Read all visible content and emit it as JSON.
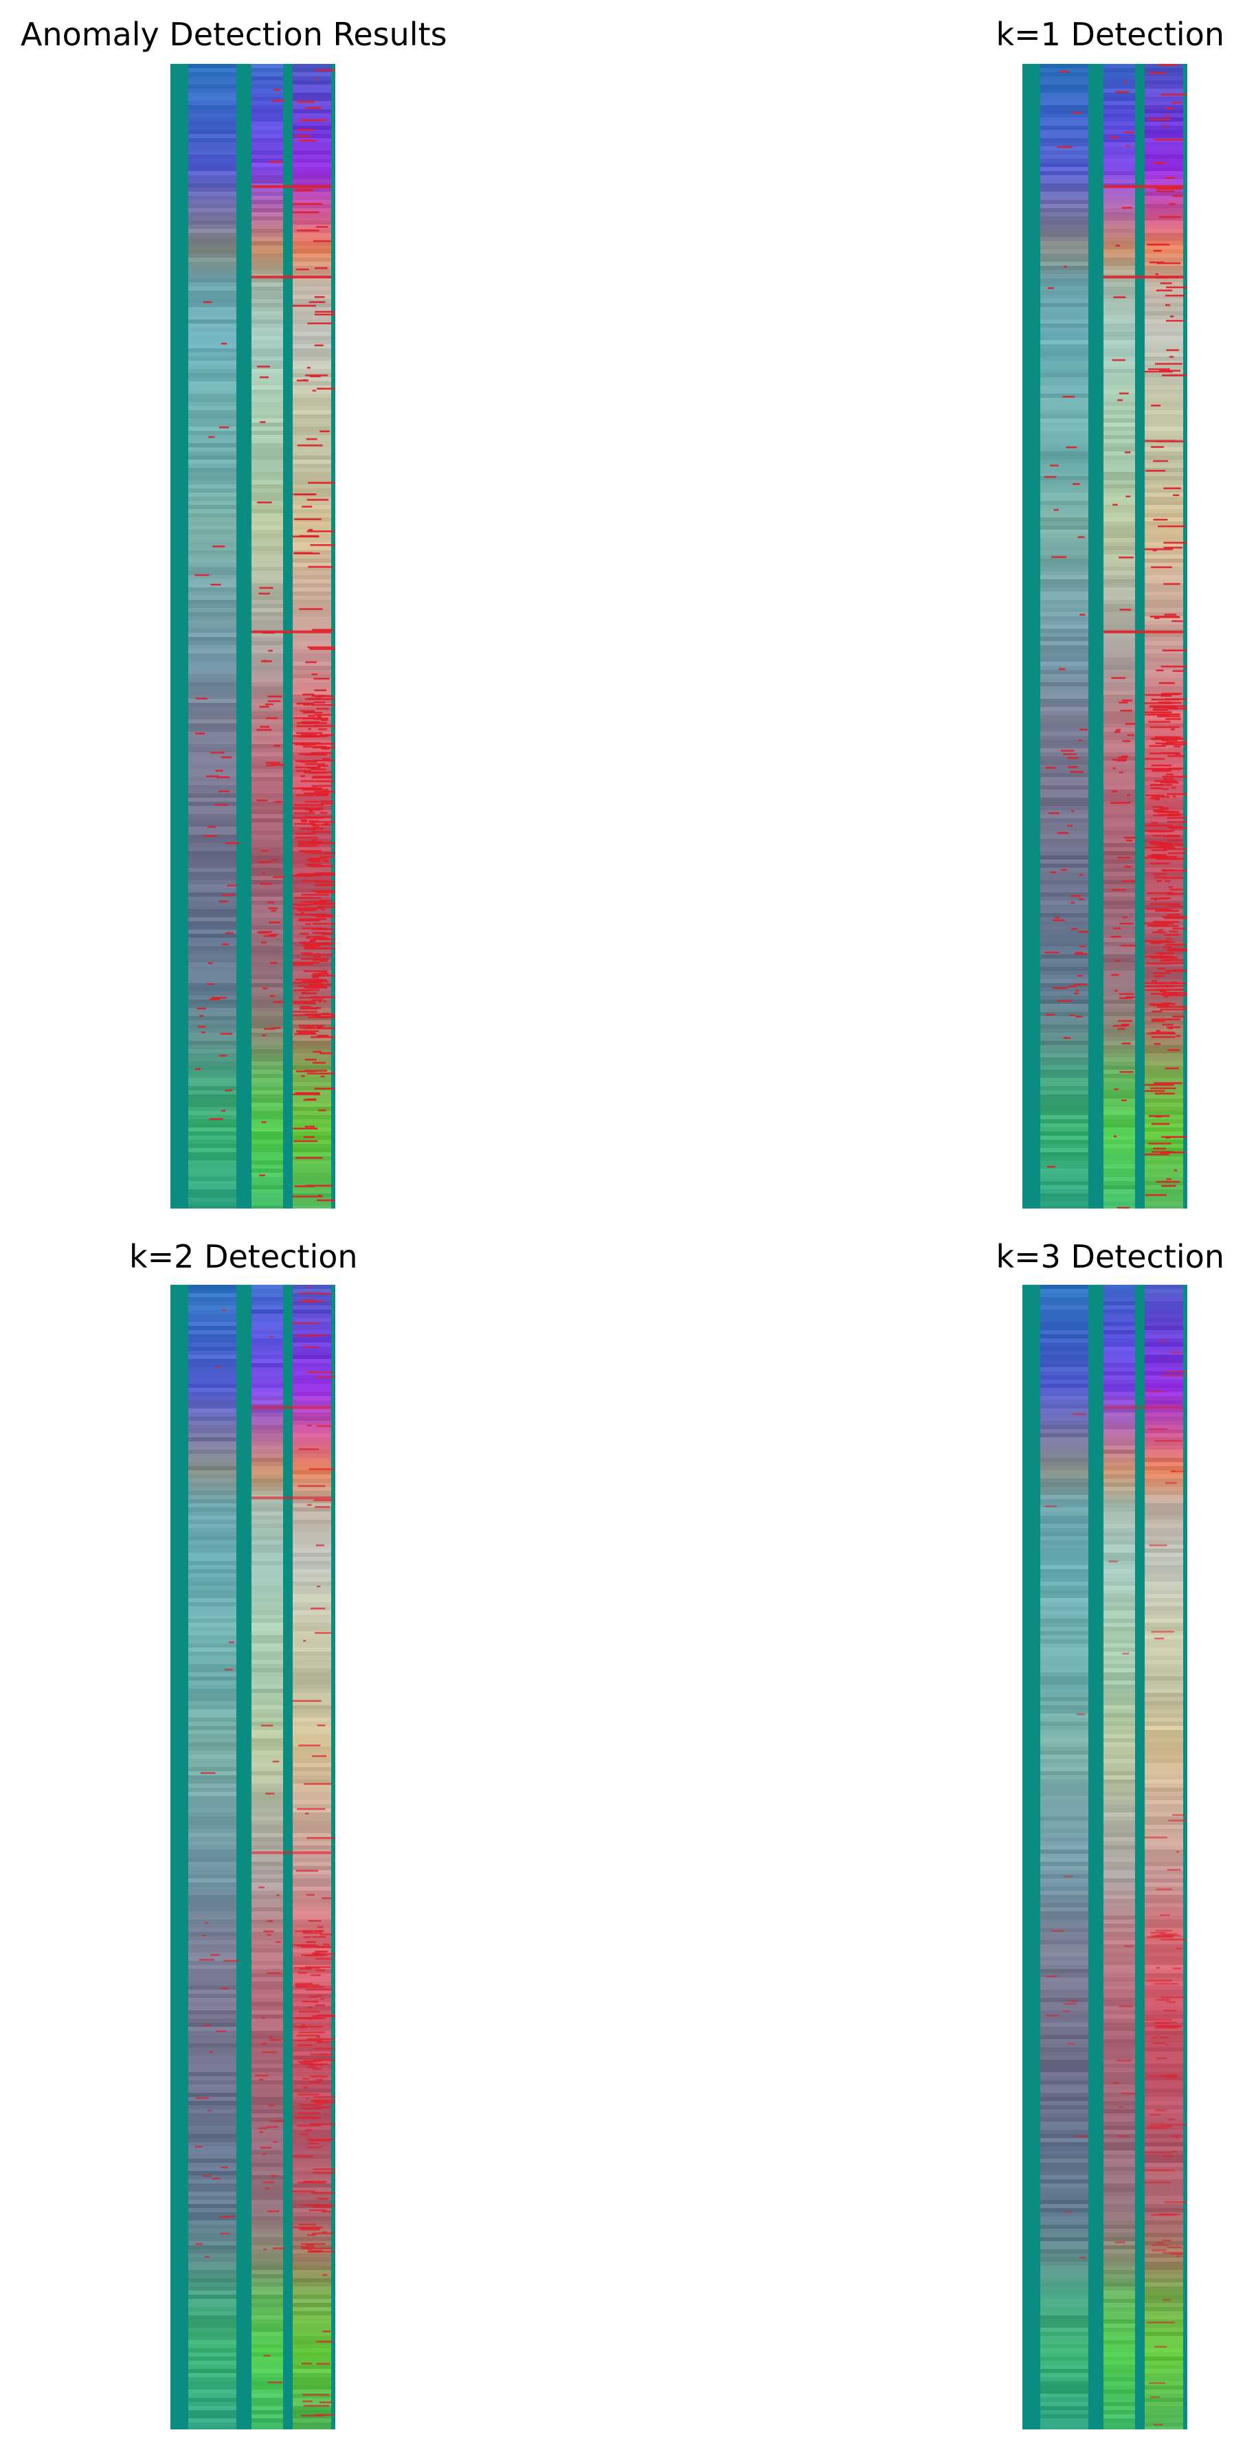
{
  "figure": {
    "panels": [
      {
        "id": "p0",
        "title": "Anomaly Detection Results",
        "marker_intensity": 1.0
      },
      {
        "id": "p1",
        "title": "k=1 Detection",
        "marker_intensity": 1.0
      },
      {
        "id": "p2",
        "title": "k=2 Detection",
        "marker_intensity": 0.55
      },
      {
        "id": "p3",
        "title": "k=3 Detection",
        "marker_intensity": 0.25
      }
    ],
    "colors": {
      "frame": "#0b8c80",
      "anomaly_marker": "#e0202a",
      "top_band": "#5a20f0",
      "bottom_band": "#40e020"
    }
  }
}
